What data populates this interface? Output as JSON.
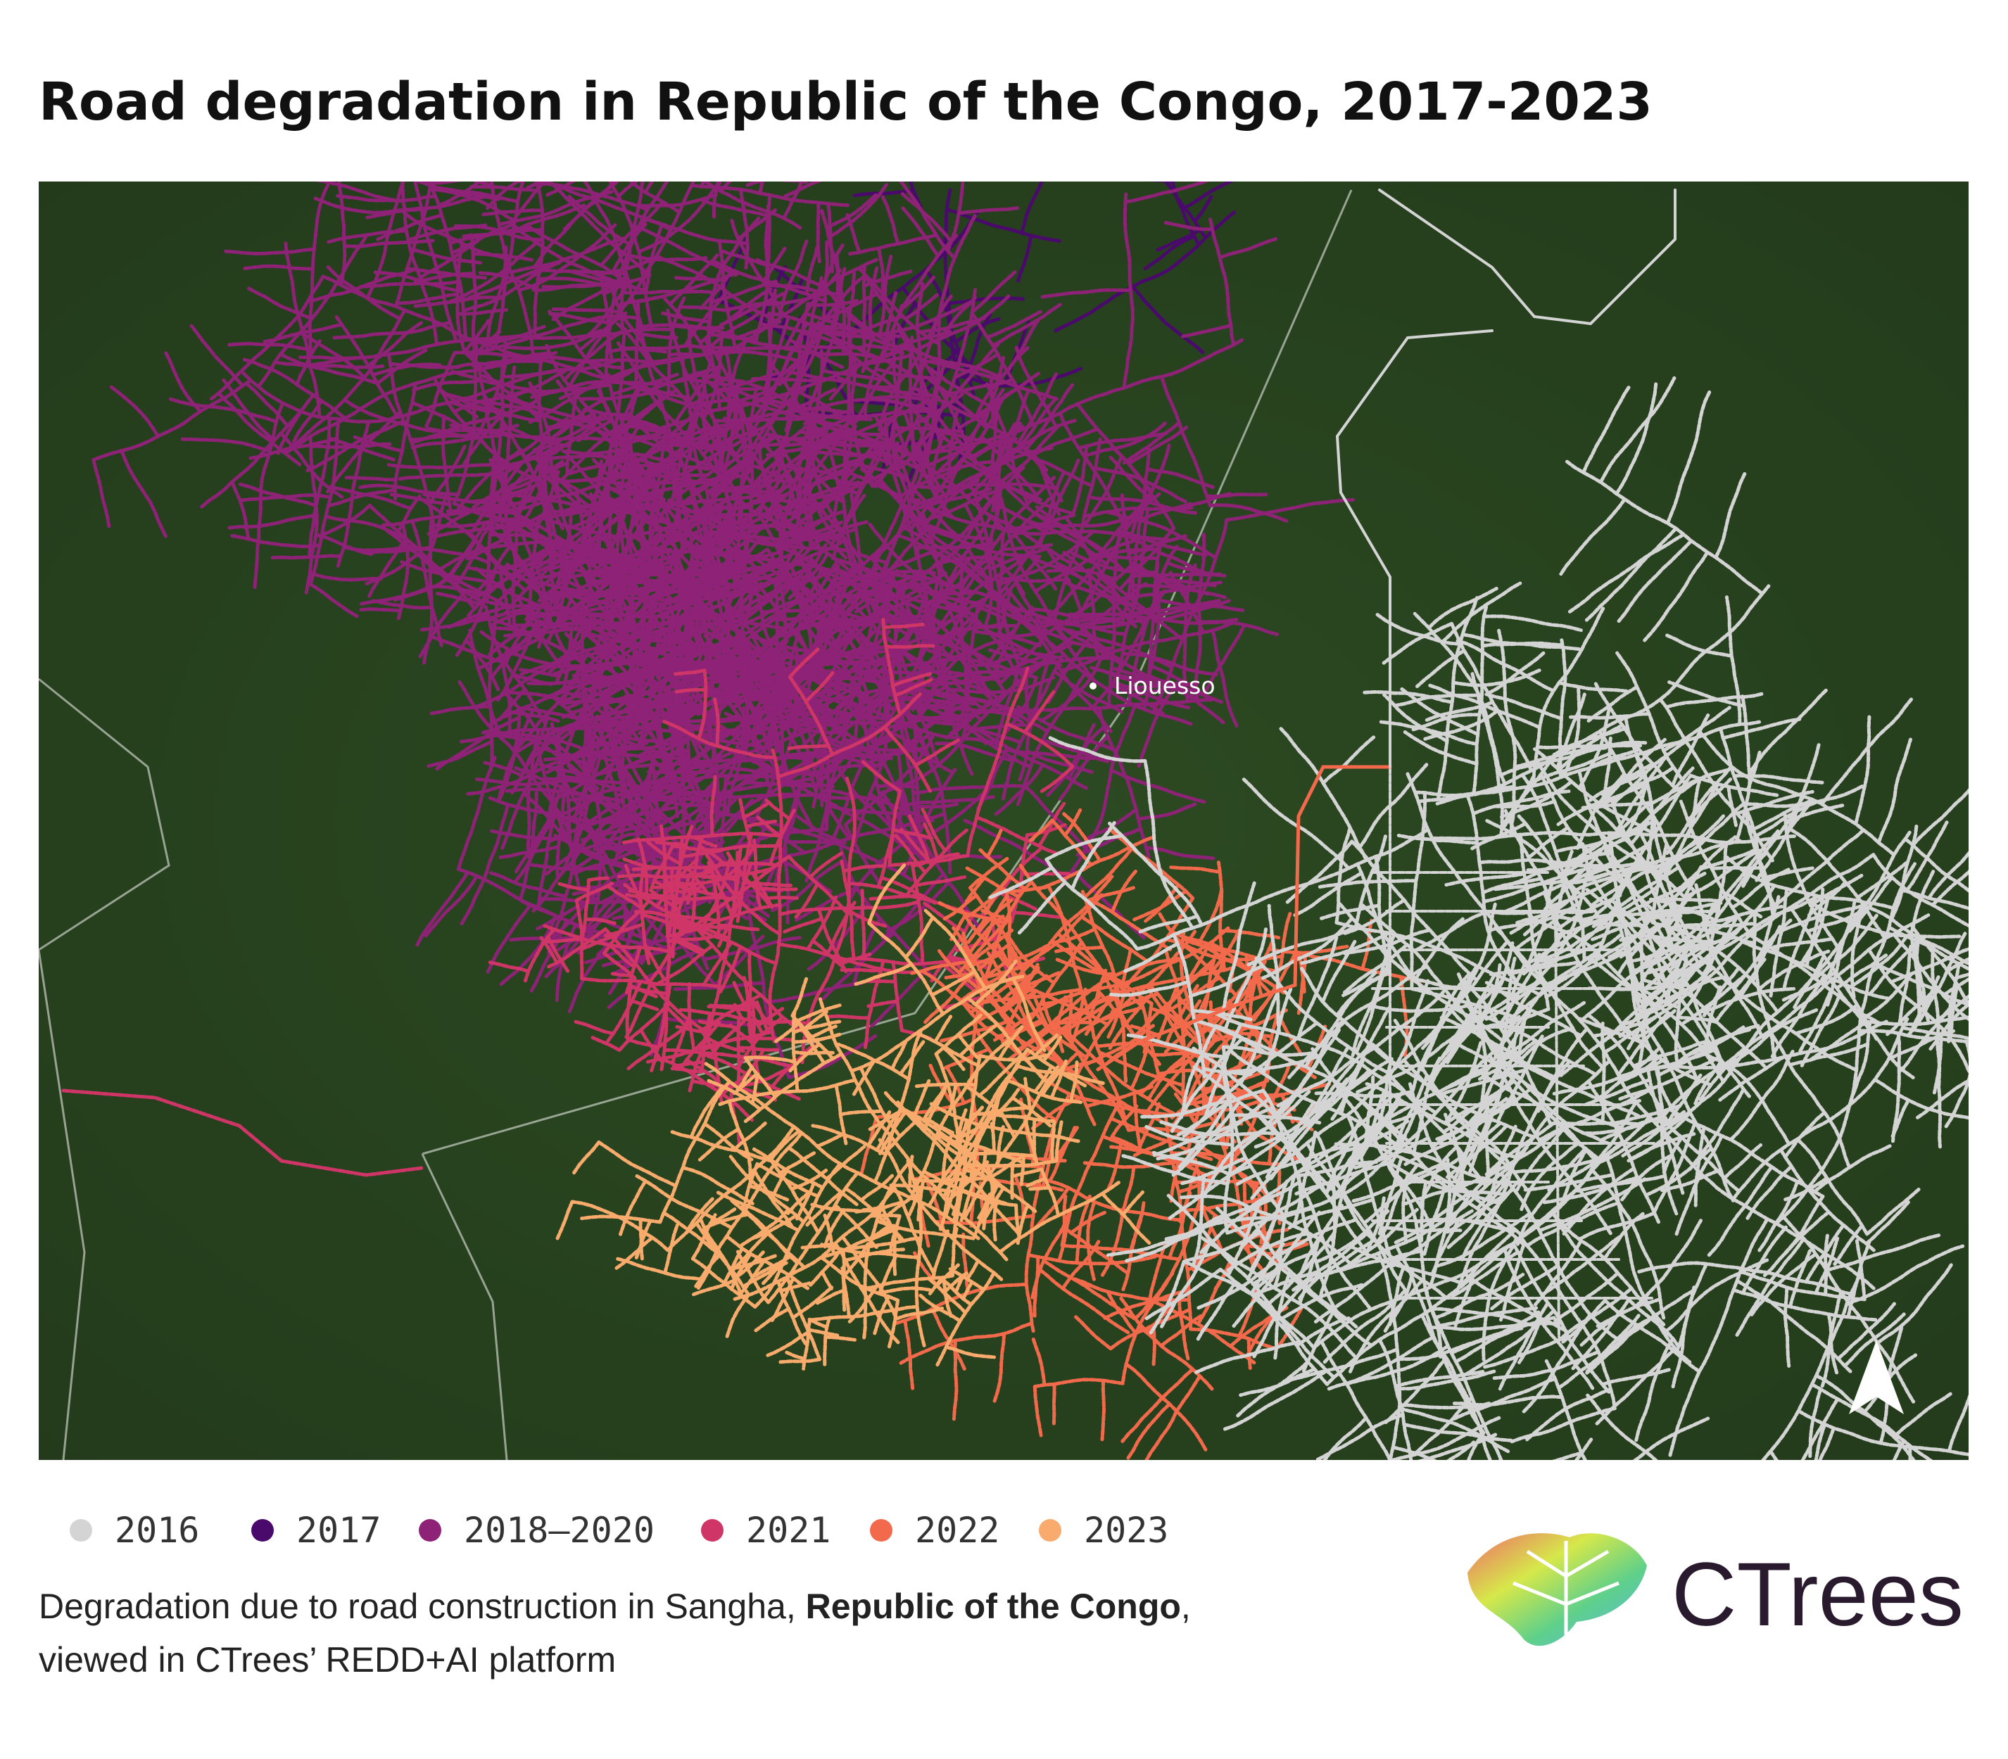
{
  "title": "Road degradation in Republic of the Congo, 2017-2023",
  "map": {
    "place_label": "Liouesso"
  },
  "legend": {
    "items": [
      {
        "label": "2016",
        "color": "#d4d4d4"
      },
      {
        "label": "2017",
        "color": "#4a0a6b"
      },
      {
        "label": "2018–2020",
        "color": "#8e2277"
      },
      {
        "label": "2021",
        "color": "#cf3566"
      },
      {
        "label": "2022",
        "color": "#f26a4b"
      },
      {
        "label": "2023",
        "color": "#f8ab6c"
      }
    ]
  },
  "caption": {
    "line1_start": "Degradation due to road construction in Sangha, ",
    "line1_bold": "Republic of the Congo",
    "line1_end": ",",
    "line2": "viewed in CTrees’ REDD+AI platform"
  },
  "logo": {
    "text": "CTrees"
  }
}
